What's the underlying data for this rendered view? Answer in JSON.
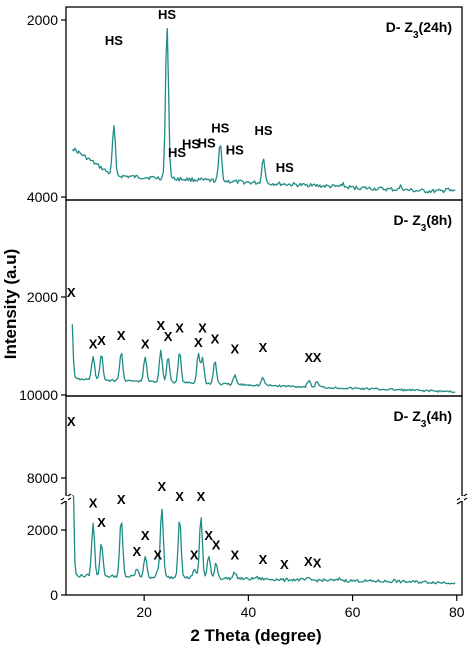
{
  "chart_data": {
    "type": "line",
    "xlabel": "2 Theta (degree)",
    "ylabel": "Intensity (a.u)",
    "x_ticks": [
      20,
      40,
      60,
      80
    ],
    "xlim": [
      5,
      81
    ],
    "line_color": "#1f8c85",
    "panels": [
      {
        "label_prefix": "D- Z",
        "label_sub": "3",
        "label_suffix": "(24h)",
        "y_ticks": [
          2000,
          4000
        ],
        "y_tick_labels": [
          "2000",
          "4000"
        ],
        "annotation": "HS",
        "peaks": [
          {
            "x": 14.2,
            "value": 3200
          },
          {
            "x": 24.4,
            "value": 2050
          },
          {
            "x": 34.6,
            "value": 3400
          },
          {
            "x": 42.9,
            "value": 3550
          },
          {
            "x": 52.0,
            "value": 3850
          },
          {
            "x": 58.0,
            "value": 3850
          },
          {
            "x": 69.3,
            "value": 3880
          },
          {
            "x": 78.0,
            "value": 3900
          }
        ],
        "labels": [
          {
            "x": 14.2,
            "value": 2280
          },
          {
            "x": 24.4,
            "value": 1990
          },
          {
            "x": 26.3,
            "value": 3550
          },
          {
            "x": 29.0,
            "value": 3450
          },
          {
            "x": 32.0,
            "value": 3440
          },
          {
            "x": 34.6,
            "value": 3270
          },
          {
            "x": 37.4,
            "value": 3520
          },
          {
            "x": 42.9,
            "value": 3300
          },
          {
            "x": 47.0,
            "value": 3720
          }
        ]
      },
      {
        "label_prefix": "D- Z",
        "label_sub": "3",
        "label_suffix": "(8h)",
        "y_ticks": [
          2000,
          10000
        ],
        "y_tick_labels": [
          "2000",
          "10000"
        ],
        "annotation": "X",
        "peaks": [
          {
            "x": 6.0,
            "value": 3000
          },
          {
            "x": 10.2,
            "value": 6800
          },
          {
            "x": 11.8,
            "value": 6700
          },
          {
            "x": 15.6,
            "value": 6500
          },
          {
            "x": 20.2,
            "value": 6900
          },
          {
            "x": 23.2,
            "value": 6300
          },
          {
            "x": 24.6,
            "value": 6900
          },
          {
            "x": 26.8,
            "value": 6500
          },
          {
            "x": 30.4,
            "value": 6600
          },
          {
            "x": 31.2,
            "value": 7000
          },
          {
            "x": 33.6,
            "value": 7200
          },
          {
            "x": 37.4,
            "value": 8400
          },
          {
            "x": 42.8,
            "value": 8600
          },
          {
            "x": 51.6,
            "value": 8800
          },
          {
            "x": 53.2,
            "value": 8900
          }
        ],
        "labels": [
          {
            "x": 6.0,
            "value": 2000
          },
          {
            "x": 10.2,
            "value": 6200
          },
          {
            "x": 11.8,
            "value": 5900
          },
          {
            "x": 15.6,
            "value": 5500
          },
          {
            "x": 20.2,
            "value": 6200
          },
          {
            "x": 23.2,
            "value": 4700
          },
          {
            "x": 24.6,
            "value": 5600
          },
          {
            "x": 26.8,
            "value": 4900
          },
          {
            "x": 30.4,
            "value": 6100
          },
          {
            "x": 31.2,
            "value": 4900
          },
          {
            "x": 33.6,
            "value": 5800
          },
          {
            "x": 37.4,
            "value": 6600
          },
          {
            "x": 42.8,
            "value": 6500
          },
          {
            "x": 51.6,
            "value": 7300
          },
          {
            "x": 53.2,
            "value": 7300
          }
        ]
      },
      {
        "label_prefix": "D- Z",
        "label_sub": "3",
        "label_suffix": "(4h)",
        "y_ticks": [
          8000,
          2000,
          0
        ],
        "y_tick_labels": [
          "8000",
          "2000",
          "0"
        ],
        "annotation": "X",
        "axis_break": true,
        "peaks": [
          {
            "x": 6.0,
            "value": 9400
          },
          {
            "x": 10.2,
            "value": 2200
          },
          {
            "x": 11.8,
            "value": 1600
          },
          {
            "x": 15.6,
            "value": 2300
          },
          {
            "x": 18.6,
            "value": 800
          },
          {
            "x": 20.2,
            "value": 1200
          },
          {
            "x": 22.6,
            "value": 700
          },
          {
            "x": 23.4,
            "value": 2700
          },
          {
            "x": 26.8,
            "value": 2400
          },
          {
            "x": 29.6,
            "value": 800
          },
          {
            "x": 30.9,
            "value": 2400
          },
          {
            "x": 32.4,
            "value": 1200
          },
          {
            "x": 33.8,
            "value": 1000
          },
          {
            "x": 37.4,
            "value": 700
          },
          {
            "x": 41.5,
            "value": 550
          },
          {
            "x": 42.5,
            "value": 500
          },
          {
            "x": 46.9,
            "value": 450
          },
          {
            "x": 51.5,
            "value": 500
          },
          {
            "x": 53.0,
            "value": 450
          },
          {
            "x": 57.6,
            "value": 500
          },
          {
            "x": 68.0,
            "value": 450
          }
        ],
        "labels": [
          {
            "x": 6.0,
            "value": 9800
          },
          {
            "x": 10.2,
            "value": 2700
          },
          {
            "x": 11.8,
            "value": 2100
          },
          {
            "x": 15.6,
            "value": 2800
          },
          {
            "x": 18.6,
            "value": 1200
          },
          {
            "x": 20.2,
            "value": 1700
          },
          {
            "x": 22.6,
            "value": 1100
          },
          {
            "x": 23.4,
            "value": 3200
          },
          {
            "x": 26.8,
            "value": 2900
          },
          {
            "x": 29.6,
            "value": 1100
          },
          {
            "x": 30.9,
            "value": 2900
          },
          {
            "x": 32.4,
            "value": 1700
          },
          {
            "x": 33.8,
            "value": 1400
          },
          {
            "x": 37.4,
            "value": 1100
          },
          {
            "x": 42.8,
            "value": 950
          },
          {
            "x": 46.9,
            "value": 800
          },
          {
            "x": 51.5,
            "value": 900
          },
          {
            "x": 53.2,
            "value": 850
          }
        ]
      }
    ]
  }
}
